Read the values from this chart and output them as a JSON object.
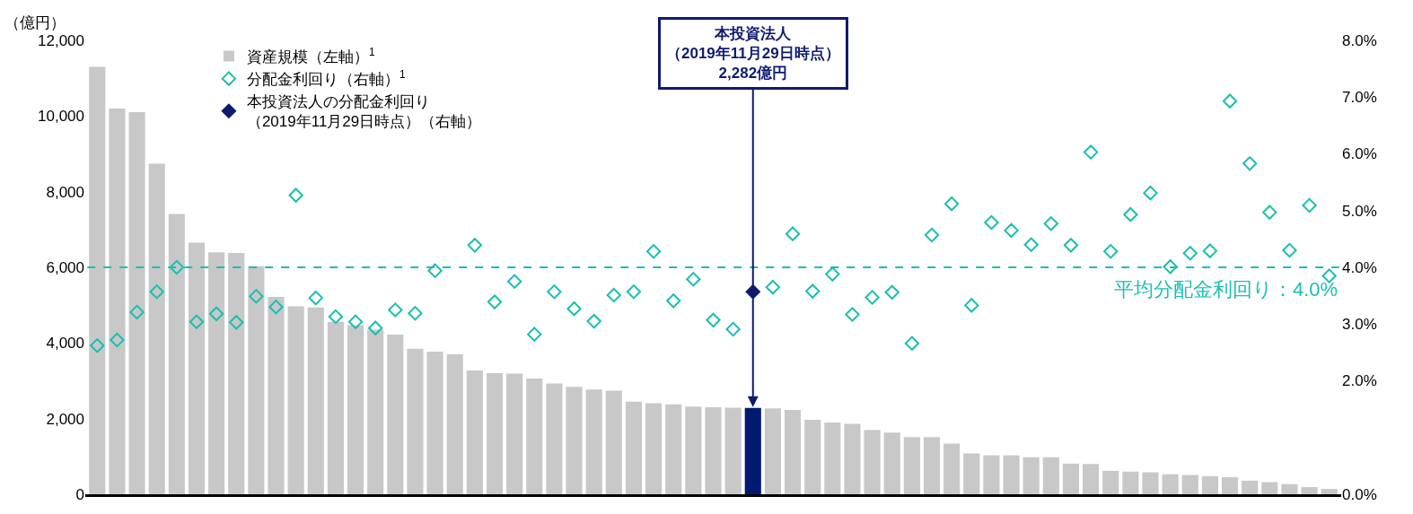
{
  "chart_data": {
    "type": "bar",
    "ylabel": "（億円）",
    "categories": [
      null,
      null,
      null,
      null,
      null,
      null,
      null,
      null,
      null,
      null,
      null,
      null,
      null,
      null,
      null,
      null,
      null,
      null,
      null,
      null,
      null,
      null,
      null,
      null,
      null,
      null,
      null,
      null,
      null,
      null,
      null,
      null,
      null,
      null,
      null,
      null,
      null,
      null,
      null,
      null,
      null,
      null,
      null,
      null,
      null,
      null,
      null,
      null,
      null,
      null,
      null,
      null,
      null,
      null,
      null,
      null,
      null,
      null,
      null,
      null,
      null,
      null,
      null
    ],
    "series": [
      {
        "name": "資産規模（左軸）$^{1}$",
        "color": "#c8c8c8",
        "colors": [
          "#c8c8c8",
          "#c8c8c8",
          "#c8c8c8",
          "#c8c8c8",
          "#c8c8c8",
          "#c8c8c8",
          "#c8c8c8",
          "#c8c8c8",
          "#c8c8c8",
          "#c8c8c8",
          "#c8c8c8",
          "#c8c8c8",
          "#c8c8c8",
          "#c8c8c8",
          "#c8c8c8",
          "#c8c8c8",
          "#c8c8c8",
          "#c8c8c8",
          "#c8c8c8",
          "#c8c8c8",
          "#c8c8c8",
          "#c8c8c8",
          "#c8c8c8",
          "#c8c8c8",
          "#c8c8c8",
          "#c8c8c8",
          "#c8c8c8",
          "#c8c8c8",
          "#c8c8c8",
          "#c8c8c8",
          "#c8c8c8",
          "#c8c8c8",
          "#c8c8c8",
          "#001a72",
          "#c8c8c8",
          "#c8c8c8",
          "#c8c8c8",
          "#c8c8c8",
          "#c8c8c8",
          "#c8c8c8",
          "#c8c8c8",
          "#c8c8c8",
          "#c8c8c8",
          "#c8c8c8",
          "#c8c8c8",
          "#c8c8c8",
          "#c8c8c8",
          "#c8c8c8",
          "#c8c8c8",
          "#c8c8c8",
          "#c8c8c8",
          "#c8c8c8",
          "#c8c8c8",
          "#c8c8c8",
          "#c8c8c8",
          "#c8c8c8",
          "#c8c8c8",
          "#c8c8c8",
          "#c8c8c8",
          "#c8c8c8",
          "#c8c8c8",
          "#c8c8c8",
          "#c8c8c8"
        ],
        "values": [
          11300,
          10200,
          10100,
          8740,
          7410,
          6650,
          6400,
          6380,
          6030,
          5220,
          4970,
          4940,
          4560,
          4470,
          4350,
          4220,
          3850,
          3770,
          3700,
          3270,
          3200,
          3190,
          3060,
          2930,
          2840,
          2770,
          2740,
          2450,
          2410,
          2380,
          2320,
          2300,
          2290,
          2282,
          2270,
          2230,
          1970,
          1900,
          1860,
          1700,
          1630,
          1510,
          1510,
          1340,
          1080,
          1030,
          1030,
          980,
          980,
          810,
          800,
          620,
          600,
          580,
          530,
          510,
          480,
          450,
          360,
          320,
          270,
          190,
          140
        ]
      },
      {
        "name": "分配金利回り（右軸）$^{1}$",
        "type": "scatter",
        "axis": "y2",
        "color": "#1abfb0",
        "marker": "diamond",
        "values": [
          2.62,
          2.72,
          3.21,
          3.57,
          4.0,
          3.04,
          3.18,
          3.03,
          3.49,
          3.3,
          5.27,
          3.46,
          3.13,
          3.04,
          2.93,
          3.25,
          3.19,
          3.94,
          null,
          4.39,
          3.39,
          3.75,
          2.82,
          3.57,
          3.27,
          3.05,
          3.51,
          3.57,
          4.28,
          3.41,
          3.79,
          3.07,
          2.91,
          null,
          3.65,
          4.59,
          3.58,
          3.88,
          3.17,
          3.47,
          3.56,
          2.66,
          4.57,
          5.12,
          3.33,
          4.79,
          4.65,
          4.4,
          4.77,
          4.39,
          6.03,
          4.28,
          4.93,
          5.31,
          4.01,
          4.25,
          4.29,
          6.93,
          5.83,
          4.97,
          4.3,
          5.09,
          3.85
        ]
      },
      {
        "name": "本投資法人の分配金利回り（2019年11月29日時点）（右軸）",
        "type": "scatter",
        "axis": "y2",
        "color": "#0d1b6e",
        "marker": "diamond",
        "values": [
          null,
          null,
          null,
          null,
          null,
          null,
          null,
          null,
          null,
          null,
          null,
          null,
          null,
          null,
          null,
          null,
          null,
          null,
          null,
          null,
          null,
          null,
          null,
          null,
          null,
          null,
          null,
          null,
          null,
          null,
          null,
          null,
          null,
          3.57,
          null,
          null,
          null,
          null,
          null,
          null,
          null,
          null,
          null,
          null,
          null,
          null,
          null,
          null,
          null,
          null,
          null,
          null,
          null,
          null,
          null,
          null,
          null,
          null,
          null,
          null,
          null,
          null,
          null
        ]
      }
    ],
    "ylim": [
      0,
      12000
    ],
    "yticks": [
      0,
      {
        "value": 2000,
        "label": "2,000"
      },
      {
        "value": 4000,
        "label": "4,000"
      },
      {
        "value": 6000,
        "label": "6,000"
      },
      {
        "value": 8000,
        "label": "8,000"
      },
      {
        "value": 10000,
        "label": "10,000"
      },
      {
        "value": 12000,
        "label": "12,000"
      }
    ],
    "y2lim": [
      0,
      8
    ],
    "y2ticks": [
      {
        "value": 0,
        "label": "0.0%"
      },
      {
        "value": 2,
        "label": "2.0%"
      },
      {
        "value": 3,
        "label": "3.0%"
      },
      {
        "value": 4,
        "label": "4.0%"
      },
      {
        "value": 5,
        "label": "5.0%"
      },
      {
        "value": 6,
        "label": "6.0%"
      },
      {
        "value": 7,
        "label": "7.0%"
      },
      {
        "value": 8,
        "label": "8.0%"
      }
    ],
    "ref_lines": [
      {
        "axis": "y2",
        "value": 4.0,
        "label": "平均分配金利回り：4.0%",
        "color": "#1abfb0",
        "line_style": "dashed"
      }
    ],
    "annotations": [
      {
        "text": "本投資法人（2019年11月29日時点）2,282億円",
        "y": 2282
      }
    ],
    "legend": "top left"
  }
}
